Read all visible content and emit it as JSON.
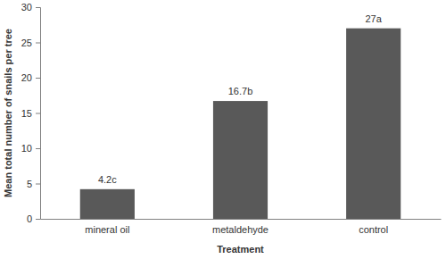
{
  "chart_data": {
    "type": "bar",
    "categories": [
      "mineral oil",
      "metaldehyde",
      "control"
    ],
    "values": [
      4.2,
      16.7,
      27
    ],
    "value_labels": [
      "4.2c",
      "16.7b",
      "27a"
    ],
    "color": "#595959",
    "x_label": "Treatment",
    "y_label": "Mean total number of snails per tree",
    "ylim": [
      0,
      30
    ],
    "yticks": [
      0,
      5,
      10,
      15,
      20,
      25,
      30
    ],
    "data_labels": true
  }
}
